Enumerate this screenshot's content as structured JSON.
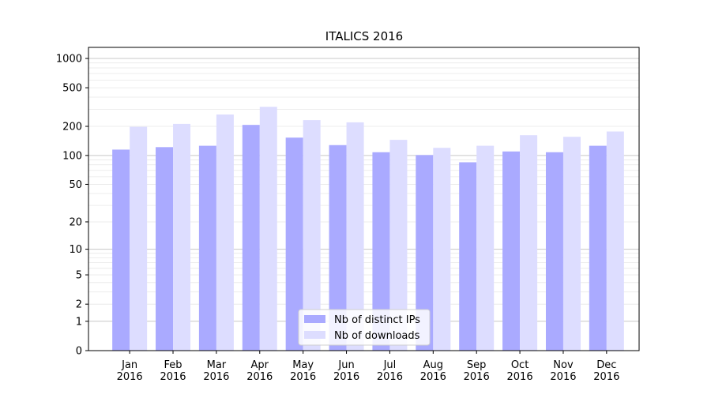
{
  "chart_data": {
    "type": "bar",
    "title": "ITALICS 2016",
    "xlabel": "",
    "ylabel": "",
    "yscale": "symlog",
    "ylim": [
      0,
      1300
    ],
    "y_ticks": [
      0,
      1,
      2,
      5,
      10,
      20,
      50,
      100,
      200,
      500,
      1000
    ],
    "y_tick_labels": [
      "0",
      "1",
      "2",
      "5",
      "10",
      "20",
      "50",
      "100",
      "200",
      "500",
      "1000"
    ],
    "grid": true,
    "legend_position": "bottom-center",
    "categories": [
      [
        "Jan",
        "2016"
      ],
      [
        "Feb",
        "2016"
      ],
      [
        "Mar",
        "2016"
      ],
      [
        "Apr",
        "2016"
      ],
      [
        "May",
        "2016"
      ],
      [
        "Jun",
        "2016"
      ],
      [
        "Jul",
        "2016"
      ],
      [
        "Aug",
        "2016"
      ],
      [
        "Sep",
        "2016"
      ],
      [
        "Oct",
        "2016"
      ],
      [
        "Nov",
        "2016"
      ],
      [
        "Dec",
        "2016"
      ]
    ],
    "series": [
      {
        "name": "Nb of distinct IPs",
        "color": "#aaaaff",
        "values": [
          115,
          122,
          126,
          207,
          153,
          128,
          108,
          101,
          85,
          110,
          108,
          126
        ]
      },
      {
        "name": "Nb of downloads",
        "color": "#ddddff",
        "values": [
          198,
          212,
          265,
          318,
          232,
          220,
          145,
          120,
          126,
          162,
          156,
          177
        ]
      }
    ]
  }
}
